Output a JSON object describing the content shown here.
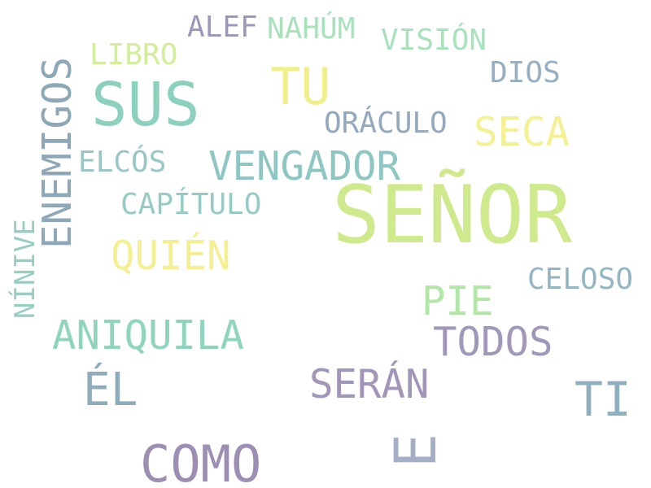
{
  "words": [
    {
      "text": "SEÑOR",
      "color": "#cfe98d"
    },
    {
      "text": "SUS",
      "color": "#8cd1be"
    },
    {
      "text": "COMO",
      "color": "#9d8fb3"
    },
    {
      "text": "TU",
      "color": "#f0f08a"
    },
    {
      "text": "E",
      "color": "#a6adc7"
    },
    {
      "text": "ÉL",
      "color": "#90acbb"
    },
    {
      "text": "TI",
      "color": "#8fafbf"
    },
    {
      "text": "ENEMIGOS",
      "color": "#8fa8b8"
    },
    {
      "text": "VENGADOR",
      "color": "#8ec6c2"
    },
    {
      "text": "ANIQUILA",
      "color": "#8fd4bc"
    },
    {
      "text": "QUIÉN",
      "color": "#f4f08f"
    },
    {
      "text": "SERÁN",
      "color": "#a196b8"
    },
    {
      "text": "TODOS",
      "color": "#a197b8"
    },
    {
      "text": "SECA",
      "color": "#f3f191"
    },
    {
      "text": "PIE",
      "color": "#b3e7a7"
    },
    {
      "text": "ORÁCULO",
      "color": "#94a8be"
    },
    {
      "text": "CAPÍTULO",
      "color": "#96cbc4"
    },
    {
      "text": "ELCÓS",
      "color": "#98c7c5"
    },
    {
      "text": "CELOSO",
      "color": "#94b6c2"
    },
    {
      "text": "NAHÚM",
      "color": "#a8e2bb"
    },
    {
      "text": "VISIÓN",
      "color": "#a8e2bd"
    },
    {
      "text": "ALEF",
      "color": "#9d98ba"
    },
    {
      "text": "LIBRO",
      "color": "#d2ee98"
    },
    {
      "text": "DIOS",
      "color": "#97afc1"
    },
    {
      "text": "NÍNIVE",
      "color": "#98cdc4"
    }
  ]
}
